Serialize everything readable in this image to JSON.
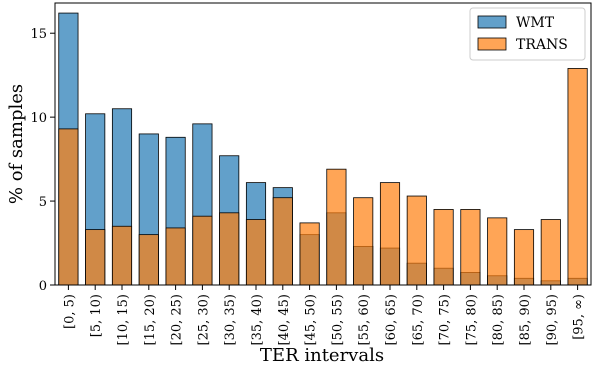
{
  "chart_data": {
    "type": "bar",
    "overlay": true,
    "categories": [
      "[0, 5)",
      "[5, 10)",
      "[10, 15)",
      "[15, 20)",
      "[20, 25)",
      "[25, 30)",
      "[30, 35)",
      "[35, 40)",
      "[40, 45)",
      "[45, 50)",
      "[50, 55)",
      "[55, 60)",
      "[60, 65)",
      "[65, 70)",
      "[70, 75)",
      "[75, 80)",
      "[80, 85)",
      "[85, 90)",
      "[90, 95)",
      "[95, ∞)"
    ],
    "series": [
      {
        "name": "WMT",
        "color": "#1f77b4",
        "values": [
          16.2,
          10.2,
          10.5,
          9.0,
          8.8,
          9.6,
          7.7,
          6.1,
          5.8,
          3.0,
          4.3,
          2.3,
          2.2,
          1.3,
          1.0,
          0.75,
          0.55,
          0.4,
          0.25,
          0.4
        ]
      },
      {
        "name": "TRANS",
        "color": "#ff7f0e",
        "values": [
          9.3,
          3.3,
          3.5,
          3.0,
          3.4,
          4.1,
          4.3,
          3.9,
          5.2,
          3.7,
          6.9,
          5.2,
          6.1,
          5.3,
          4.5,
          4.5,
          4.0,
          3.3,
          3.9,
          12.9
        ]
      }
    ],
    "xlabel": "TER intervals",
    "ylabel": "% of samples",
    "ylim": [
      0,
      16.8
    ],
    "yticks": [
      0,
      5,
      10,
      15
    ],
    "grid": false,
    "legend_position": "top-right"
  }
}
